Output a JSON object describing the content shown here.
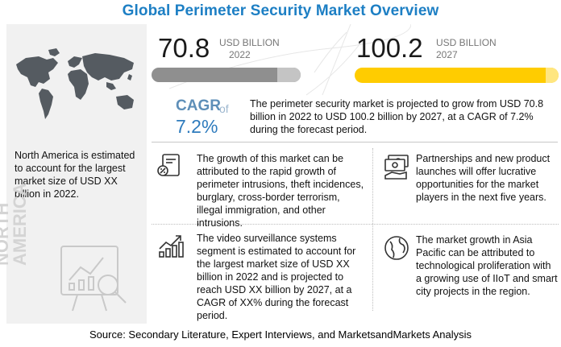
{
  "header": {
    "title": "Global Perimeter Security Market Overview"
  },
  "left_panel": {
    "north_america_text": "North America is estimated to account for the largest market size of USD XX billion in 2022.",
    "region_label_line1": "NORTH",
    "region_label_line2": "AMERICA"
  },
  "market_2022": {
    "value": "70.8",
    "unit": "USD BILLION",
    "year": "2022"
  },
  "market_2027": {
    "value": "100.2",
    "unit": "USD BILLION",
    "year": "2027"
  },
  "cagr": {
    "label": "CAGR",
    "of": "of",
    "value": "7.2%",
    "description": "The perimeter security market is projected to grow from USD 70.8 billion in 2022 to USD 100.2 billion by 2027, at a CAGR of 7.2% during the forecast period."
  },
  "insights": {
    "growth": "The growth of this market can be attributed to the rapid  growth of perimeter intrusions, theft incidences, burglary, cross-border terrorism, illegal immigration, and other intrusions.",
    "dot": ".",
    "video": "The video surveillance systems segment is estimated to account for the largest market size of USD XX billion in 2022 and is projected to reach USD XX billion by 2027, at a CAGR of XX% during the forecast period.",
    "partnerships": "Partnerships and new product launches will offer lucrative opportunities for the market players in the next five years.",
    "asia": "The market growth in Asia Pacific can be attributed to technological proliferation with a growing use of IIoT and smart city projects in the region."
  },
  "icons": {
    "map": "world-map-icon",
    "analytics": "analytics-magnifier-icon",
    "growth": "percent-chart-icon",
    "video": "bar-growth-icon",
    "partner": "money-handshake-icon",
    "asia": "globe-icon"
  },
  "colors": {
    "title": "#1d7fc4",
    "bar_2022": "#8f8f8f",
    "bar_2027": "#ffcc00",
    "cagr": "#2e7bbd"
  },
  "footer": {
    "source": "Source: Secondary Literature, Expert Interviews, and MarketsandMarkets Analysis"
  }
}
